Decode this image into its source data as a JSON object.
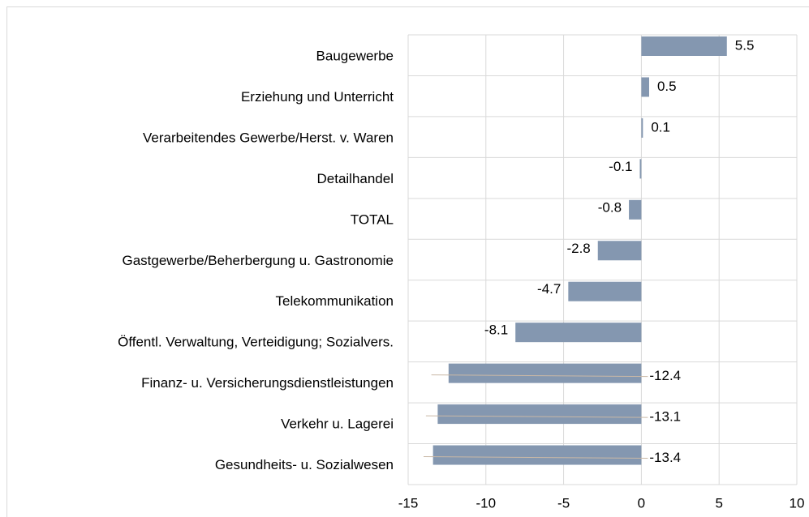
{
  "chart_data": {
    "type": "bar",
    "orientation": "horizontal",
    "categories": [
      "Baugewerbe",
      "Erziehung und Unterricht",
      "Verarbeitendes Gewerbe/Herst. v. Waren",
      "Detailhandel",
      "TOTAL",
      "Gastgewerbe/Beherbergung u. Gastronomie",
      "Telekommunikation",
      "Öffentl. Verwaltung, Verteidigung; Sozialvers.",
      "Finanz- u. Versicherungsdienstleistungen",
      "Verkehr u. Lagerei",
      "Gesundheits- u. Sozialwesen"
    ],
    "values": [
      5.5,
      0.5,
      0.1,
      -0.1,
      -0.8,
      -2.8,
      -4.7,
      -8.1,
      -12.4,
      -13.1,
      -13.4
    ],
    "color": "#8497b0",
    "xlim": [
      -15,
      10
    ],
    "xticks": [
      -15,
      -10,
      -5,
      0,
      5,
      10
    ],
    "grid": true
  }
}
